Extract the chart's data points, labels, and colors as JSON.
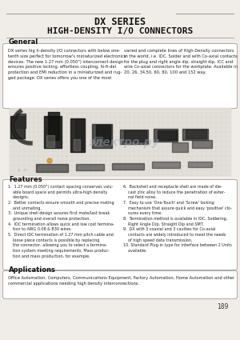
{
  "bg_color": "#f0ede8",
  "title_line1": "DX SERIES",
  "title_line2": "HIGH-DENSITY I/O CONNECTORS",
  "section_general": "General",
  "general_left": "DX series hig h-density I/O connectors with below one-\ntenth size perfect for tomorrow's miniaturized electronics\ndevices. The new 1.27 mm (0.050\") interconnect design\nensures positive locking, effortless coupling, hi-fi-del\nprotection and EMI reduction in a miniaturized and rug-\nged package. DX series offers you one of the most",
  "general_right": "varied and complete lines of High-Density connectors\nin the world, i.e. IDC, Solder and with Co-axial contacts\nfor the plug and right angle dip, straight dip, ICC and\nwire Co-axial connectors for the workplate. Available in\n20, 26, 34,50, 60, 80, 100 and 152 way.",
  "section_features": "Features",
  "feat_left": "1.  1.27 mm (0.050\") contact spacing conserves valu-\n    able board space and permits ultra-high density\n    designs.\n2.  Better contacts ensure smooth and precise mating\n    and unmating.\n3.  Unique shell design assures first mate/last break\n    grounding and overall noise protection.\n4.  IDC termination allows quick and low cost termina-\n    tion to AWG 0.08 & B30 wires.\n5.  Direct IDC termination of 1.27 mm pitch cable and\n    loose piece contacts is possible by replacing\n    the connector, allowing you to select a termina-\n    tion system meeting requirements. Mass produc-\n    tion and mass production, for example.",
  "feat_right": "6.  Backshell and receptacle shell are made of die-\n    cast zinc alloy to reduce the penetration of exter-\n    nal field noise.\n7.  Easy to use 'One-Touch' and 'Screw' locking\n    mechanism that assure quick and easy 'positive' clo-\n    sures every time.\n8.  Termination method is available in IDC, Soldering,\n    Right Angle D/p, Straight Dip and SMT.\n9.  DX with 3 coaxial and 3 cavities for Co-axial\n    contacts are widely introduced to meet the needs\n    of high speed data transmission.\n10. Standard Plug-in type for interface between 2 Units\n    available.",
  "section_applications": "Applications",
  "applications_text": "Office Automation, Computers, Communications Equipment, Factory Automation, Home Automation and other\ncommercial applications needing high density interconnections.",
  "page_number": "189",
  "watermark": "электро.ру",
  "watermark2": "э  л"
}
